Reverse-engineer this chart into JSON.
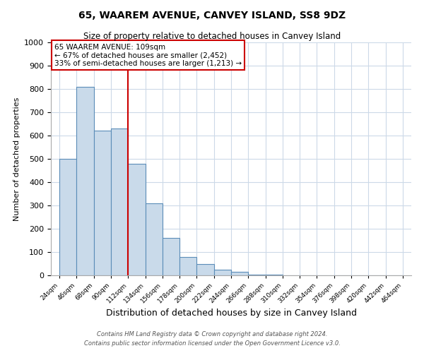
{
  "title": "65, WAAREM AVENUE, CANVEY ISLAND, SS8 9DZ",
  "subtitle": "Size of property relative to detached houses in Canvey Island",
  "xlabel": "Distribution of detached houses by size in Canvey Island",
  "ylabel": "Number of detached properties",
  "bin_labels": [
    "24sqm",
    "46sqm",
    "68sqm",
    "90sqm",
    "112sqm",
    "134sqm",
    "156sqm",
    "178sqm",
    "200sqm",
    "222sqm",
    "244sqm",
    "266sqm",
    "288sqm",
    "310sqm",
    "332sqm",
    "354sqm",
    "376sqm",
    "398sqm",
    "420sqm",
    "442sqm",
    "464sqm"
  ],
  "bin_left_edges": [
    24,
    46,
    68,
    90,
    112,
    134,
    156,
    178,
    200,
    222,
    244,
    266,
    288,
    310,
    332,
    354,
    376,
    398,
    420,
    442
  ],
  "bin_width": 22,
  "bar_heights": [
    500,
    810,
    620,
    630,
    480,
    310,
    160,
    80,
    47,
    25,
    15,
    3,
    3,
    0,
    0,
    0,
    0,
    0,
    0,
    0
  ],
  "bar_color": "#c9daea",
  "bar_edge_color": "#5b8db8",
  "property_line_x": 112,
  "property_line_color": "#cc0000",
  "annotation_title": "65 WAAREM AVENUE: 109sqm",
  "annotation_line1": "← 67% of detached houses are smaller (2,452)",
  "annotation_line2": "33% of semi-detached houses are larger (1,213) →",
  "annotation_box_color": "#cc0000",
  "ylim": [
    0,
    1000
  ],
  "yticks": [
    0,
    100,
    200,
    300,
    400,
    500,
    600,
    700,
    800,
    900,
    1000
  ],
  "footer1": "Contains HM Land Registry data © Crown copyright and database right 2024.",
  "footer2": "Contains public sector information licensed under the Open Government Licence v3.0.",
  "background_color": "#ffffff",
  "grid_color": "#ccd9e8",
  "xlim_left": 13,
  "xlim_right": 475
}
